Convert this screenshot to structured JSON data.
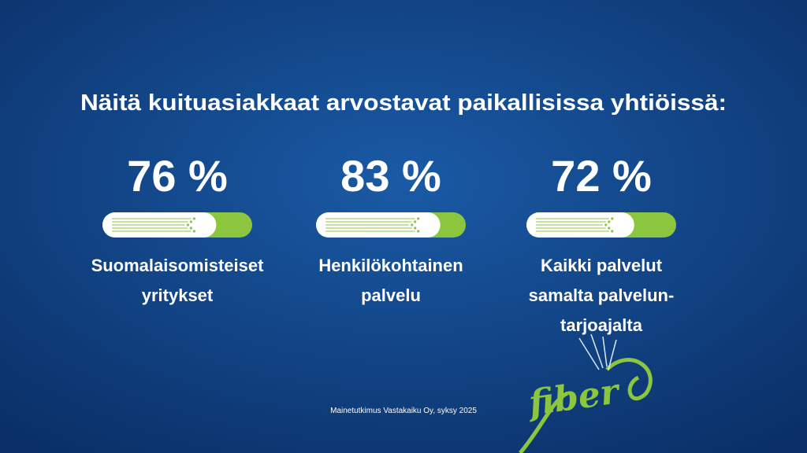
{
  "title": "Näitä kuituasiakkaat arvostavat paikallisissa yhtiöissä:",
  "stats": [
    {
      "value": 76,
      "value_label": "76 %",
      "label_lines": [
        "Suomalaisomisteiset",
        "yritykset"
      ]
    },
    {
      "value": 83,
      "value_label": "83 %",
      "label_lines": [
        "Henkilökohtainen",
        "palvelu"
      ]
    },
    {
      "value": 72,
      "value_label": "72 %",
      "label_lines": [
        "Kaikki palvelut",
        "samalta palvelun-",
        "tarjoajalta"
      ]
    }
  ],
  "source": "Mainetutkimus Vastakaiku Oy, syksy 2025",
  "logo": "fiber"
}
